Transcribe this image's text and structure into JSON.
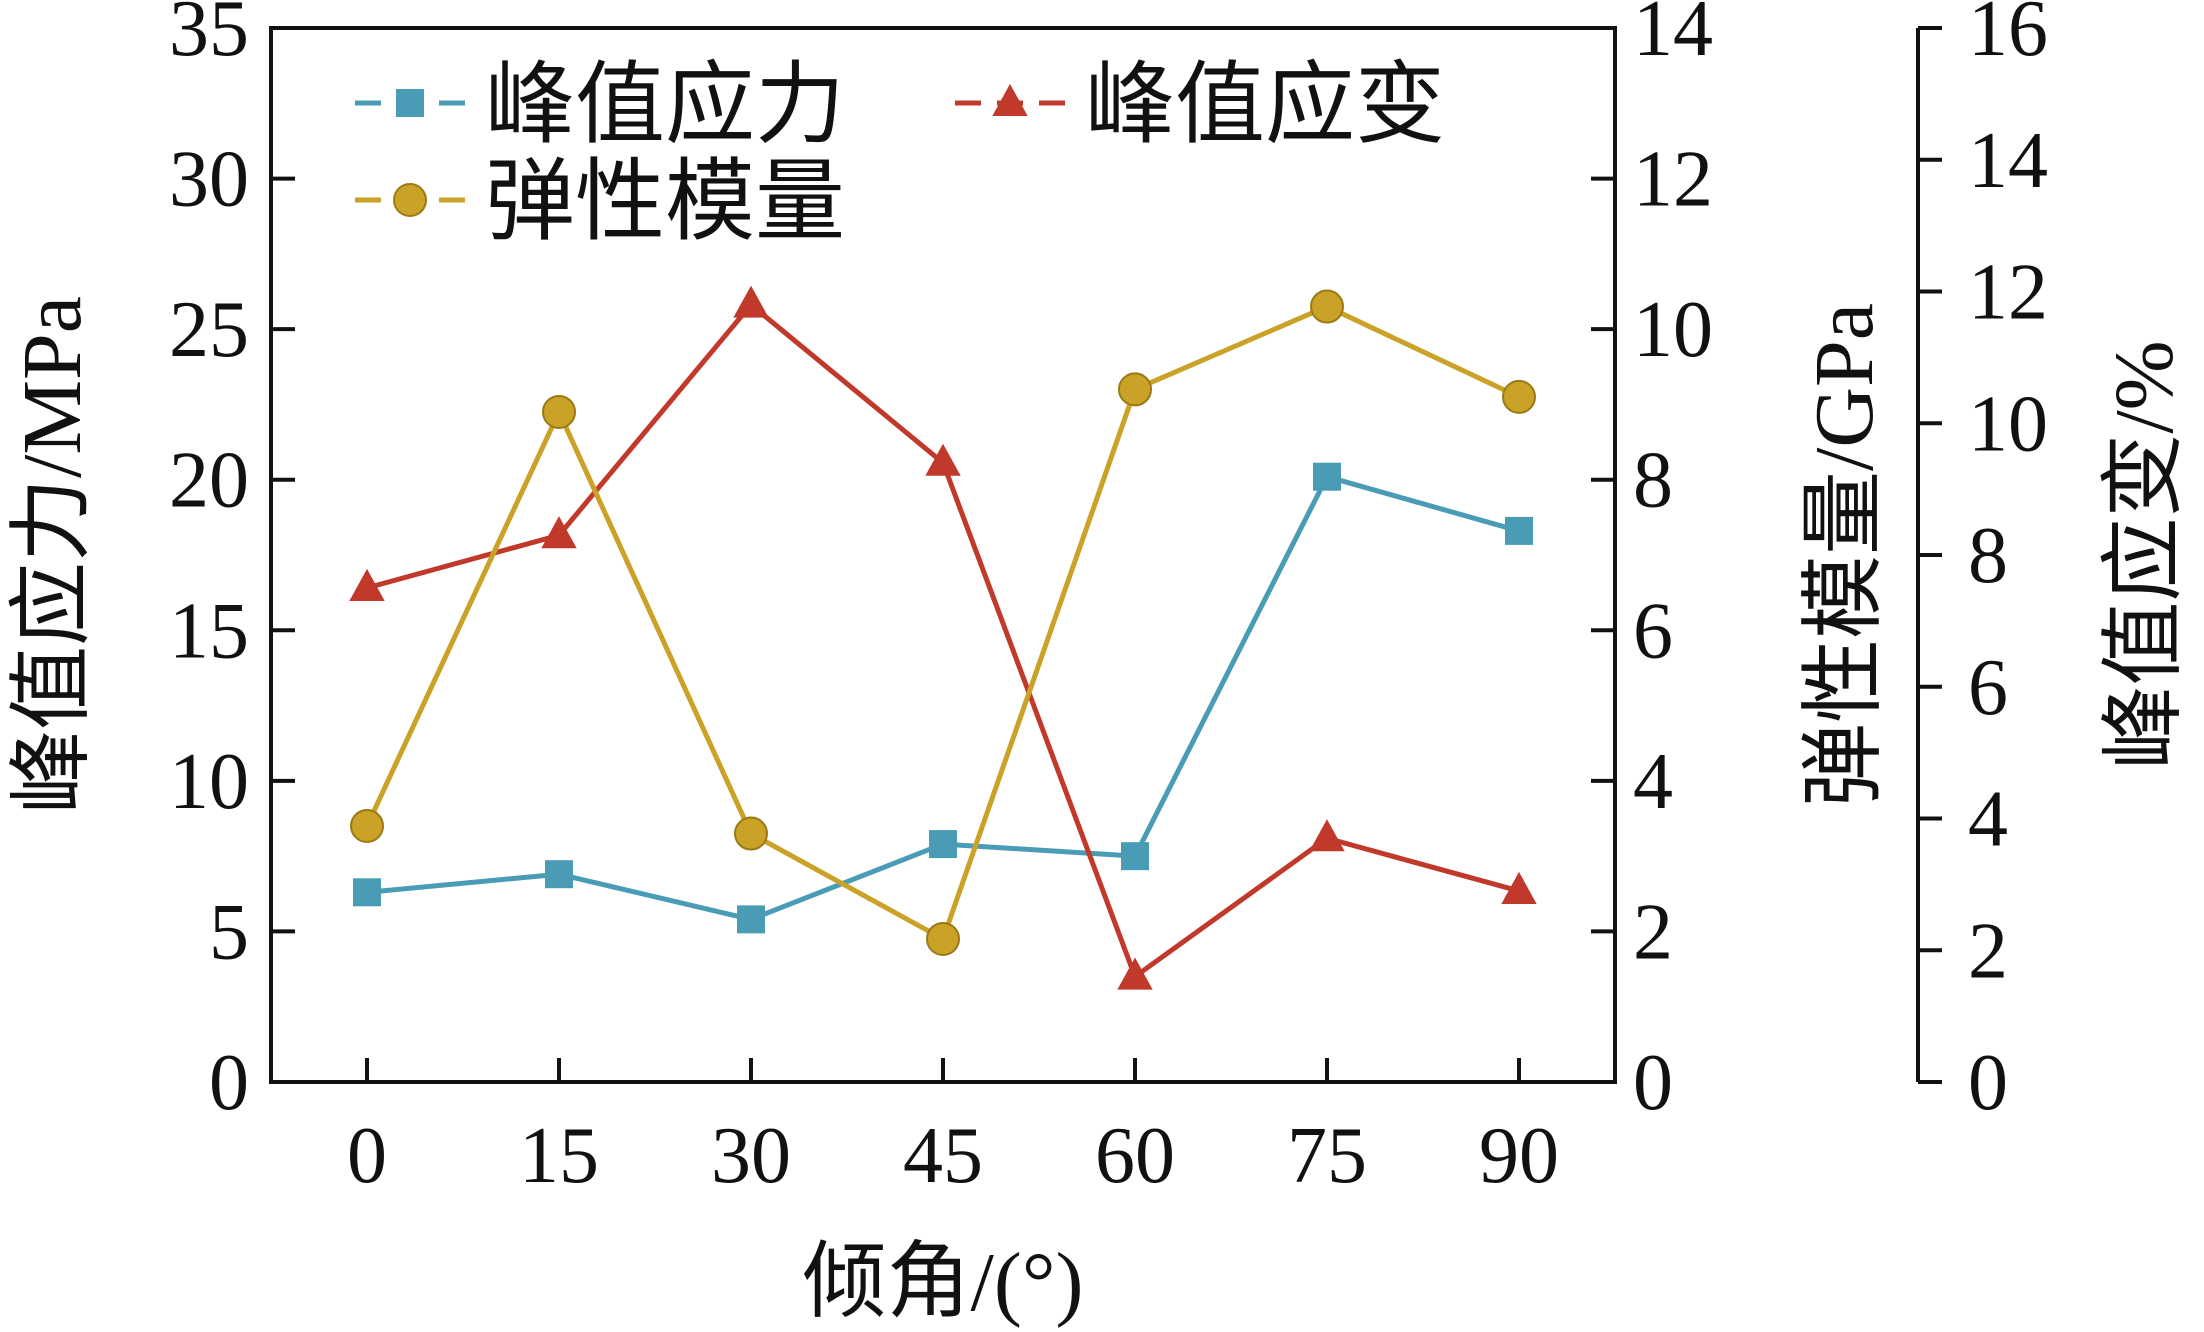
{
  "chart_data": {
    "type": "line",
    "categories": [
      "0",
      "15",
      "30",
      "45",
      "60",
      "75",
      "90"
    ],
    "x": [
      0,
      15,
      30,
      45,
      60,
      75,
      90
    ],
    "xlabel": "倾角/(°)",
    "axes": {
      "left": {
        "label": "峰值应力/MPa",
        "ylim": [
          0,
          35
        ],
        "ticks": [
          "0",
          "5",
          "10",
          "15",
          "20",
          "25",
          "30",
          "35"
        ]
      },
      "right1": {
        "label": "弹性模量/GPa",
        "ylim": [
          0,
          14
        ],
        "ticks": [
          "0",
          "2",
          "4",
          "6",
          "8",
          "10",
          "12",
          "14"
        ]
      },
      "right2": {
        "label": "峰值应变/%",
        "ylim": [
          0,
          16
        ],
        "ticks": [
          "0",
          "2",
          "4",
          "6",
          "8",
          "10",
          "12",
          "14",
          "16"
        ]
      }
    },
    "series": [
      {
        "name": "峰值应力",
        "axis": "left",
        "marker": "square",
        "color": "#4a9bb5",
        "values": [
          6.3,
          6.9,
          5.4,
          7.9,
          7.5,
          20.1,
          18.3
        ]
      },
      {
        "name": "峰值应变",
        "axis": "right2",
        "marker": "triangle",
        "color": "#c0392b",
        "values": [
          7.5,
          8.3,
          11.8,
          9.4,
          1.6,
          3.7,
          2.9
        ]
      },
      {
        "name": "弹性模量",
        "axis": "right1",
        "marker": "circle",
        "color": "#c9a227",
        "values": [
          3.4,
          8.9,
          3.3,
          1.9,
          9.2,
          10.3,
          9.1
        ]
      }
    ]
  }
}
